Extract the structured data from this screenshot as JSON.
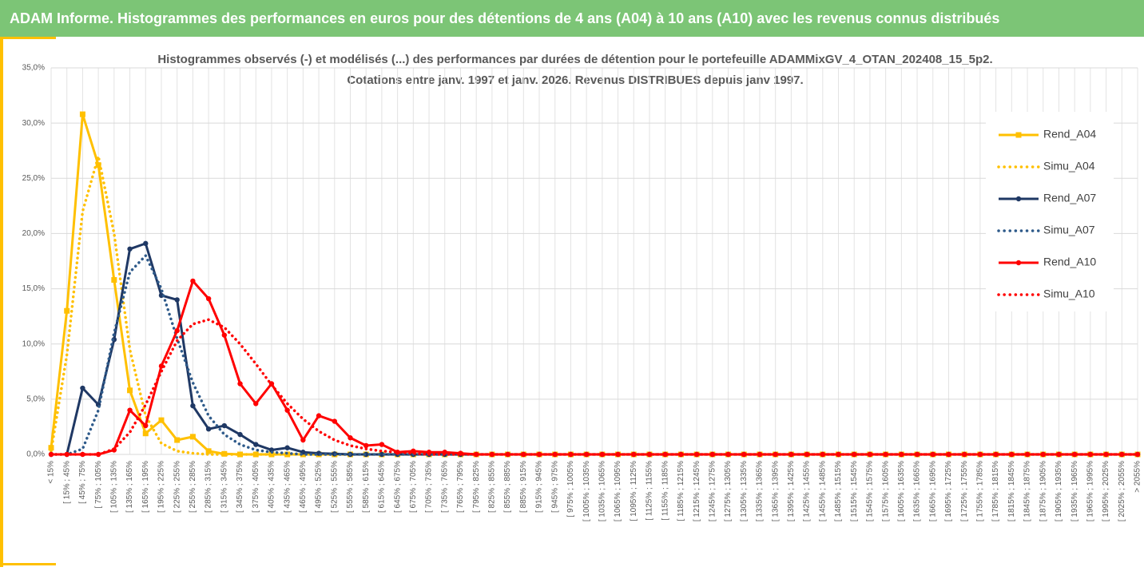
{
  "header": {
    "title": "ADAM Informe. Histogrammes des performances en euros pour des détentions de 4 ans (A04) à 10 ans (A10) avec les revenus connus distribués"
  },
  "chart_data": {
    "type": "line",
    "title": "Histogrammes observés (-) et modélisés (...) des performances par durées de détention pour  le portefeuille ADAMMixGV_4_OTAN_202408_15_5p2.",
    "subtitle": "Cotations  entre janv. 1997 et janv. 2026. Revenus DISTRIBUES depuis janv 1997.",
    "categories": [
      "< 15%",
      "[ 15% ; 45%",
      "[ 45% ; 75%",
      "[ 75% ; 105%",
      "[ 105% ; 135%",
      "[ 135% ; 165%",
      "[ 165% ; 195%",
      "[ 195% ; 225%",
      "[ 225% ; 255%",
      "[ 255% ; 285%",
      "[ 285% ; 315%",
      "[ 315% ; 345%",
      "[ 345% ; 375%",
      "[ 375% ; 405%",
      "[ 405% ; 435%",
      "[ 435% ; 465%",
      "[ 465% ; 495%",
      "[ 495% ; 525%",
      "[ 525% ; 555%",
      "[ 555% ; 585%",
      "[ 585% ; 615%",
      "[ 615% ; 645%",
      "[ 645% ; 675%",
      "[ 675% ; 705%",
      "[ 705% ; 735%",
      "[ 735% ; 765%",
      "[ 765% ; 795%",
      "[ 795% ; 825%",
      "[ 825% ; 855%",
      "[ 855% ; 885%",
      "[ 885% ; 915%",
      "[ 915% ; 945%",
      "[ 945% ; 975%",
      "[ 975% ; 1005%",
      "[ 1005% ; 1035%",
      "[ 1035% ; 1065%",
      "[ 1065% ; 1095%",
      "[ 1095% ; 1125%",
      "[ 1125% ; 1155%",
      "[ 1155% ; 1185%",
      "[ 1185% ; 1215%",
      "[ 1215% ; 1245%",
      "[ 1245% ; 1275%",
      "[ 1275% ; 1305%",
      "[ 1305% ; 1335%",
      "[ 1335% ; 1365%",
      "[ 1365% ; 1395%",
      "[ 1395% ; 1425%",
      "[ 1425% ; 1455%",
      "[ 1455% ; 1485%",
      "[ 1485% ; 1515%",
      "[ 1515% ; 1545%",
      "[ 1545% ; 1575%",
      "[ 1575% ; 1605%",
      "[ 1605% ; 1635%",
      "[ 1635% ; 1665%",
      "[ 1665% ; 1695%",
      "[ 1695% ; 1725%",
      "[ 1725% ; 1755%",
      "[ 1755% ; 1785%",
      "[ 1785% ; 1815%",
      "[ 1815% ; 1845%",
      "[ 1845% ; 1875%",
      "[ 1875% ; 1905%",
      "[ 1905% ; 1935%",
      "[ 1935% ; 1965%",
      "[ 1965% ; 1995%",
      "[ 1995% ; 2025%",
      "[ 2025% ; 2055%",
      "> 2055%"
    ],
    "series": [
      {
        "name": "Rend_A04",
        "color": "#ffc000",
        "style": "solid",
        "marker": "square",
        "values": [
          0.6,
          13,
          30.8,
          26.2,
          15.8,
          5.8,
          1.9,
          3.1,
          1.3,
          1.6,
          0.3,
          0.05,
          0,
          0,
          0,
          0,
          0,
          0,
          0,
          0,
          0,
          0,
          0,
          0,
          0,
          0,
          0,
          0,
          0,
          0,
          0,
          0,
          0,
          0,
          0,
          0,
          0,
          0,
          0,
          0,
          0,
          0,
          0,
          0,
          0,
          0,
          0,
          0,
          0,
          0,
          0,
          0,
          0,
          0,
          0,
          0,
          0,
          0,
          0,
          0,
          0,
          0,
          0,
          0,
          0,
          0,
          0,
          0,
          0,
          0
        ]
      },
      {
        "name": "Simu_A04",
        "color": "#ffc000",
        "style": "dotted",
        "marker": "none",
        "values": [
          0.3,
          9,
          22,
          27,
          20,
          9.5,
          3.5,
          1,
          0.3,
          0.1,
          0,
          0,
          0,
          0,
          0,
          0,
          0,
          0,
          0,
          0,
          0,
          0,
          0,
          0,
          0,
          0,
          0,
          0,
          0,
          0,
          0,
          0,
          0,
          0,
          0,
          0,
          0,
          0,
          0,
          0,
          0,
          0,
          0,
          0,
          0,
          0,
          0,
          0,
          0,
          0,
          0,
          0,
          0,
          0,
          0,
          0,
          0,
          0,
          0,
          0,
          0,
          0,
          0,
          0,
          0,
          0,
          0,
          0,
          0,
          0
        ]
      },
      {
        "name": "Rend_A07",
        "color": "#1f3864",
        "style": "solid",
        "marker": "circle",
        "values": [
          0,
          0,
          6,
          4.5,
          10.4,
          18.6,
          19.1,
          14.4,
          14,
          4.4,
          2.3,
          2.6,
          1.8,
          0.9,
          0.4,
          0.6,
          0.2,
          0.1,
          0.05,
          0,
          0,
          0,
          0,
          0,
          0,
          0,
          0,
          0,
          0,
          0,
          0,
          0,
          0,
          0,
          0,
          0,
          0,
          0,
          0,
          0,
          0,
          0,
          0,
          0,
          0,
          0,
          0,
          0,
          0,
          0,
          0,
          0,
          0,
          0,
          0,
          0,
          0,
          0,
          0,
          0,
          0,
          0,
          0,
          0,
          0,
          0,
          0,
          0,
          0,
          0
        ]
      },
      {
        "name": "Simu_A07",
        "color": "#2e5a8a",
        "style": "dotted",
        "marker": "none",
        "values": [
          0,
          0,
          0.5,
          4,
          11,
          16.5,
          18,
          15,
          10.5,
          6.5,
          3.5,
          1.8,
          0.9,
          0.4,
          0.2,
          0.1,
          0,
          0,
          0,
          0,
          0,
          0,
          0,
          0,
          0,
          0,
          0,
          0,
          0,
          0,
          0,
          0,
          0,
          0,
          0,
          0,
          0,
          0,
          0,
          0,
          0,
          0,
          0,
          0,
          0,
          0,
          0,
          0,
          0,
          0,
          0,
          0,
          0,
          0,
          0,
          0,
          0,
          0,
          0,
          0,
          0,
          0,
          0,
          0,
          0,
          0,
          0,
          0,
          0,
          0
        ]
      },
      {
        "name": "Rend_A10",
        "color": "#ff0000",
        "style": "solid",
        "marker": "circle",
        "values": [
          0,
          0,
          0,
          0,
          0.4,
          4,
          2.6,
          8,
          11.2,
          15.7,
          14.1,
          10.8,
          6.4,
          4.6,
          6.4,
          4,
          1.3,
          3.5,
          3,
          1.5,
          0.8,
          0.9,
          0.2,
          0.3,
          0.2,
          0.2,
          0.1,
          0,
          0,
          0,
          0,
          0,
          0,
          0,
          0,
          0,
          0,
          0,
          0,
          0,
          0,
          0,
          0,
          0,
          0,
          0,
          0,
          0,
          0,
          0,
          0,
          0,
          0,
          0,
          0,
          0,
          0,
          0,
          0,
          0,
          0,
          0,
          0,
          0,
          0,
          0,
          0,
          0,
          0,
          0
        ]
      },
      {
        "name": "Simu_A10",
        "color": "#ff0000",
        "style": "dotted",
        "marker": "none",
        "values": [
          0,
          0,
          0,
          0,
          0.5,
          2,
          4.5,
          7.5,
          10.3,
          11.8,
          12.2,
          11.5,
          10,
          8.2,
          6.3,
          4.6,
          3.2,
          2.1,
          1.3,
          0.8,
          0.5,
          0.3,
          0.2,
          0.1,
          0,
          0,
          0,
          0,
          0,
          0,
          0,
          0,
          0,
          0,
          0,
          0,
          0,
          0,
          0,
          0,
          0,
          0,
          0,
          0,
          0,
          0,
          0,
          0,
          0,
          0,
          0,
          0,
          0,
          0,
          0,
          0,
          0,
          0,
          0,
          0,
          0,
          0,
          0,
          0,
          0,
          0,
          0,
          0,
          0,
          0
        ]
      }
    ],
    "ylim": [
      0,
      35
    ],
    "yticks": [
      {
        "value": 0,
        "label": "0,0%"
      },
      {
        "value": 5,
        "label": "5,0%"
      },
      {
        "value": 10,
        "label": "10,0%"
      },
      {
        "value": 15,
        "label": "15,0%"
      },
      {
        "value": 20,
        "label": "20,0%"
      },
      {
        "value": 25,
        "label": "25,0%"
      },
      {
        "value": 30,
        "label": "30,0%"
      },
      {
        "value": 35,
        "label": "35,0%"
      }
    ],
    "grid": true,
    "legend": "right"
  }
}
